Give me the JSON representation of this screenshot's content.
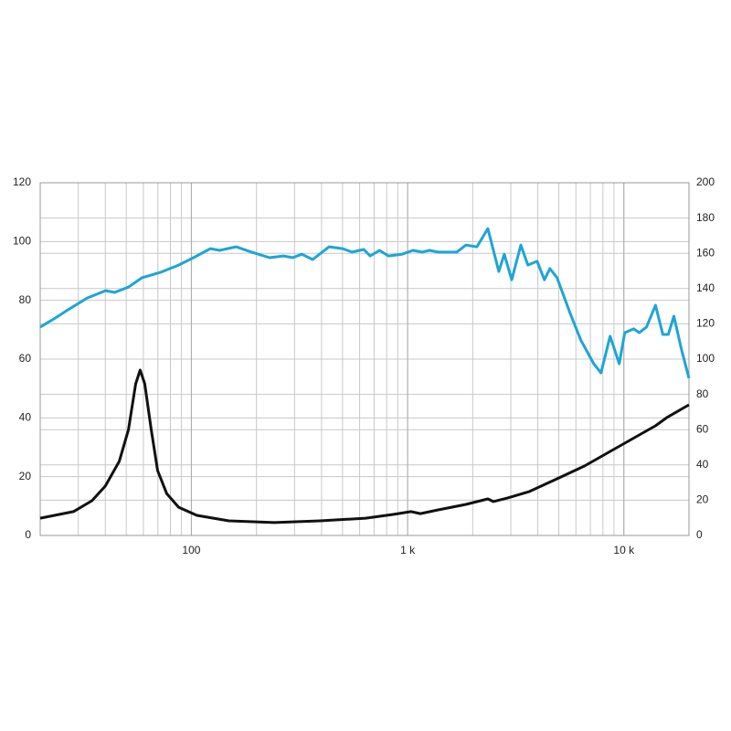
{
  "chart_data": {
    "type": "line",
    "log_x": true,
    "grid": true,
    "xlim": [
      20,
      20000
    ],
    "xticks": [
      100,
      {
        "value": 1000,
        "label": "1 k"
      },
      {
        "value": 10000,
        "label": "10 k"
      }
    ],
    "ylim": [
      0,
      120
    ],
    "yticks": [
      0,
      20,
      40,
      60,
      80,
      100,
      120
    ],
    "y2lim": [
      0,
      200
    ],
    "y2ticks": [
      0,
      20,
      40,
      60,
      80,
      100,
      120,
      140,
      160,
      180,
      200
    ],
    "series": [
      {
        "color": "#1ea5d6",
        "axis": "y",
        "x": [
          20,
          23.5,
          27.2,
          33,
          40.1,
          44.2,
          51.2,
          59.2,
          71.9,
          87.3,
          106,
          122.6,
          135,
          161,
          190,
          230,
          267,
          294,
          324,
          364,
          433,
          501,
          553,
          627,
          671,
          741,
          815,
          942,
          1059,
          1167,
          1259,
          1385,
          1687,
          1860,
          2090,
          2350,
          2640,
          2800,
          3030,
          3340,
          3600,
          3970,
          4290,
          4550,
          4910,
          5630,
          6320,
          7260,
          7840,
          8640,
          9520,
          10090,
          11100,
          11780,
          12720,
          14010,
          15140,
          16060,
          17040,
          18440,
          20000
        ],
        "values": [
          70.9,
          74,
          77,
          80.8,
          83.3,
          82.7,
          84.5,
          87.7,
          89.5,
          92,
          95.1,
          97.6,
          97,
          98.2,
          96.4,
          94.5,
          95.1,
          94.5,
          95.7,
          93.9,
          98.2,
          97.6,
          96.4,
          97.3,
          95.1,
          97,
          95.1,
          95.7,
          97,
          96.4,
          97,
          96.4,
          96.4,
          98.8,
          98.2,
          104.4,
          89.8,
          95.7,
          87,
          98.8,
          92,
          93.3,
          87,
          90.8,
          87.7,
          75.8,
          66.5,
          58.4,
          55.3,
          67.8,
          58.4,
          69,
          70.3,
          69,
          70.9,
          78.3,
          68.4,
          68.4,
          74.6,
          63.4,
          53.5
        ]
      },
      {
        "color": "#111111",
        "axis": "y2",
        "x": [
          20,
          28.5,
          34.7,
          40,
          46.4,
          51.2,
          55.3,
          58,
          60.9,
          65.2,
          69.8,
          76.9,
          87.3,
          106,
          149,
          242,
          393,
          640,
          857,
          1037,
          1145,
          1385,
          1860,
          2350,
          2490,
          2890,
          3660,
          4910,
          6570,
          8800,
          11780,
          13990,
          15770,
          20000
        ],
        "values": [
          9.8,
          13.5,
          19.7,
          28,
          42,
          60,
          86,
          93.8,
          86,
          60,
          36.8,
          23.8,
          16,
          11.4,
          8.3,
          7.3,
          8.3,
          9.8,
          11.9,
          13.5,
          12.4,
          14.5,
          17.6,
          20.7,
          19.2,
          21.2,
          24.9,
          32.1,
          39.4,
          48.2,
          57,
          62.2,
          66.8,
          74.1
        ]
      }
    ]
  }
}
